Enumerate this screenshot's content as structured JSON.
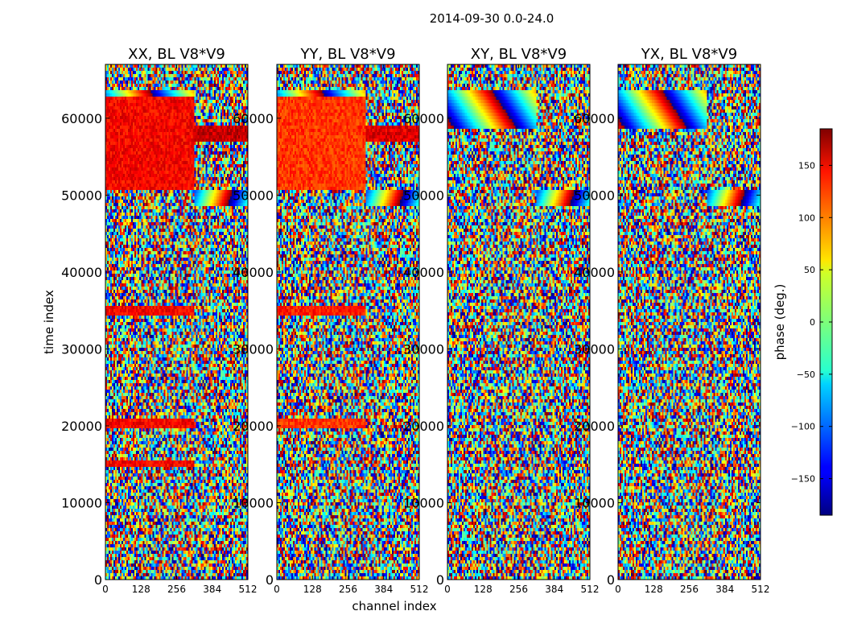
{
  "figure": {
    "suptitle": "2014-09-30 0.0-24.0"
  },
  "chart_data": {
    "type": "heatmap",
    "title": "2014-09-30 0.0-24.0",
    "xlabel": "channel index",
    "ylabel": "time index",
    "xlim": [
      0,
      512
    ],
    "ylim": [
      0,
      67000
    ],
    "x_ticks": [
      "0",
      "128",
      "256",
      "384",
      "512"
    ],
    "x_tick_values": [
      0,
      128,
      256,
      384,
      512
    ],
    "y_ticks": [
      "0",
      "10000",
      "20000",
      "30000",
      "40000",
      "50000",
      "60000"
    ],
    "y_tick_values": [
      0,
      10000,
      20000,
      30000,
      40000,
      50000,
      60000
    ],
    "colormap": "jet",
    "colorbar": {
      "label": "phase (deg.)",
      "range": [
        -185,
        185
      ],
      "ticks": [
        "150",
        "100",
        "50",
        "0",
        "−50",
        "−100",
        "−150"
      ],
      "tick_values": [
        150,
        100,
        50,
        0,
        -50,
        -100,
        -150
      ]
    },
    "panels": [
      {
        "title": "XX, BL V8*V9",
        "id": "xx",
        "solid_bands": [
          [
            50500,
            63000,
            0,
            320,
            140
          ],
          [
            34500,
            35800,
            0,
            320,
            140
          ],
          [
            19500,
            21000,
            0,
            320,
            140
          ],
          [
            14700,
            15500,
            0,
            320,
            140
          ],
          [
            57000,
            59000,
            320,
            512,
            160
          ]
        ]
      },
      {
        "title": "YY, BL V8*V9",
        "id": "yy",
        "solid_bands": [
          [
            50500,
            63000,
            0,
            320,
            120
          ],
          [
            34500,
            35800,
            0,
            320,
            130
          ],
          [
            19500,
            21000,
            0,
            320,
            120
          ],
          [
            57000,
            59000,
            320,
            512,
            150
          ]
        ]
      },
      {
        "title": "XY, BL V8*V9",
        "id": "xy",
        "solid_bands": []
      },
      {
        "title": "YX, BL V8*V9",
        "id": "yx",
        "solid_bands": []
      }
    ]
  }
}
